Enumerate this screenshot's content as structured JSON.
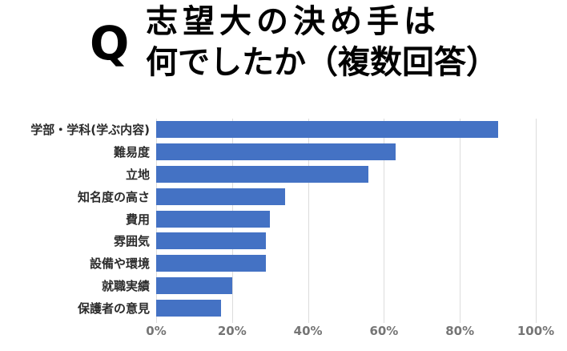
{
  "title": {
    "q": "Q",
    "line1": "志望大の決め手は",
    "line2": "何でしたか（複数回答）"
  },
  "chart_data": {
    "type": "bar",
    "orientation": "horizontal",
    "title": "Q 志望大の決め手は何でしたか（複数回答）",
    "categories": [
      "学部・学科(学ぶ内容)",
      "難易度",
      "立地",
      "知名度の高さ",
      "費用",
      "雰囲気",
      "設備や環境",
      "就職実績",
      "保護者の意見"
    ],
    "values": [
      90,
      63,
      56,
      34,
      30,
      29,
      29,
      20,
      17
    ],
    "unit": "%",
    "xlabel": "",
    "ylabel": "",
    "xlim": [
      0,
      100
    ],
    "x_ticks": [
      "0%",
      "20%",
      "40%",
      "60%",
      "80%",
      "100%"
    ],
    "tick_values": [
      0,
      20,
      40,
      60,
      80,
      100
    ],
    "grid": "vertical gridlines at each 20% tick",
    "legend": "none",
    "colors": {
      "bar": "#4472C4",
      "gridline": "#dcdcdc",
      "tick_label": "#757575",
      "category_label": "#2b2b2b",
      "title": "#000000",
      "background": "#ffffff"
    }
  }
}
